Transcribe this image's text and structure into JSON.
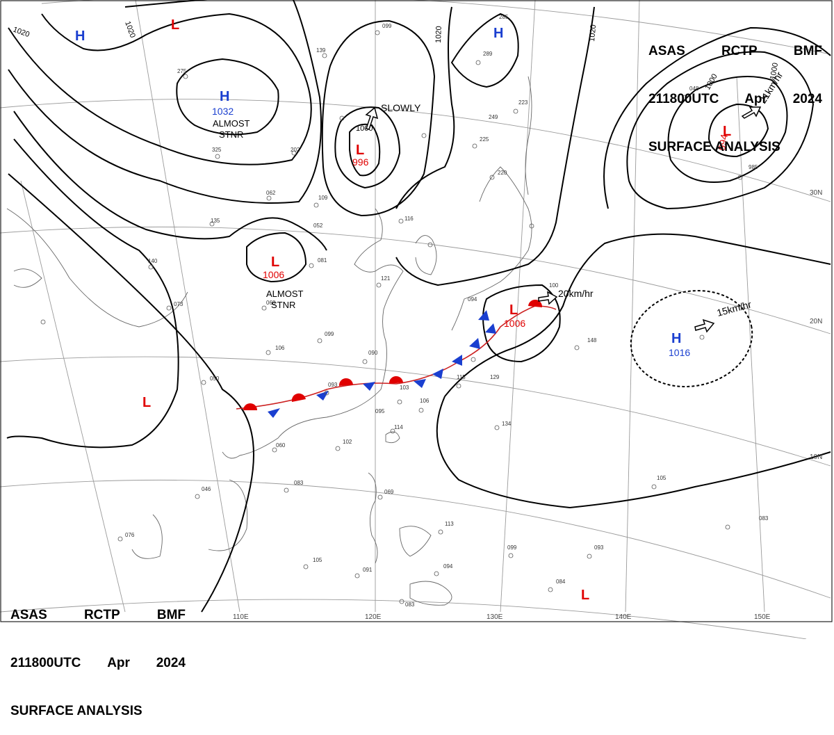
{
  "header": {
    "agency": "ASAS",
    "station": "RCTP",
    "code": "BMF",
    "time": "211800UTC",
    "month": "Apr",
    "year": "2024",
    "product": "SURFACE ANALYSIS"
  },
  "isobar_labels": [
    "1020",
    "1020",
    "1020",
    "1020",
    "1000",
    "1000",
    "1000"
  ],
  "pressure_centers": [
    {
      "type": "H",
      "value": "",
      "color": "#1a3fd0"
    },
    {
      "type": "H",
      "value": "1032",
      "color": "#1a3fd0",
      "note": "ALMOST\nSTNR"
    },
    {
      "type": "L",
      "value": "",
      "color": "#e00000"
    },
    {
      "type": "L",
      "value": "996",
      "color": "#e00000",
      "note": "SLOWLY"
    },
    {
      "type": "H",
      "value": "",
      "color": "#1a3fd0"
    },
    {
      "type": "L",
      "value": "994",
      "color": "#e00000",
      "note": "21km/hr"
    },
    {
      "type": "L",
      "value": "1006",
      "color": "#e00000",
      "note": "ALMOST\nSTNR"
    },
    {
      "type": "L",
      "value": "1006",
      "color": "#e00000",
      "note": "20km/hr"
    },
    {
      "type": "H",
      "value": "1016",
      "color": "#1a3fd0",
      "note": "15km/hr"
    },
    {
      "type": "L",
      "value": "",
      "color": "#e00000"
    },
    {
      "type": "L",
      "value": "",
      "color": "#e00000"
    }
  ],
  "grid_labels": {
    "lat": [
      "30N",
      "20N",
      "10N"
    ],
    "lon": [
      "110E",
      "120E",
      "130E",
      "140E",
      "150E"
    ]
  },
  "station_obs": [
    "139",
    "275",
    "325",
    "202",
    "062",
    "109",
    "052",
    "116",
    "135",
    "140",
    "081",
    "121",
    "073",
    "068",
    "099",
    "106",
    "090",
    "050",
    "093",
    "103",
    "106",
    "114",
    "095",
    "102",
    "060",
    "046",
    "083",
    "069",
    "076",
    "105",
    "091",
    "083",
    "094",
    "113",
    "099",
    "093",
    "084",
    "134",
    "129",
    "115",
    "148",
    "105",
    "083",
    "100",
    "094",
    "220",
    "223",
    "225",
    "249",
    "289",
    "285",
    "099",
    "048",
    "985"
  ],
  "colors": {
    "warm_front": "#e00000",
    "cold_front": "#1a3fd0",
    "high": "#1a3fd0",
    "low": "#e00000",
    "isobar": "#000000",
    "coast": "#555555"
  }
}
